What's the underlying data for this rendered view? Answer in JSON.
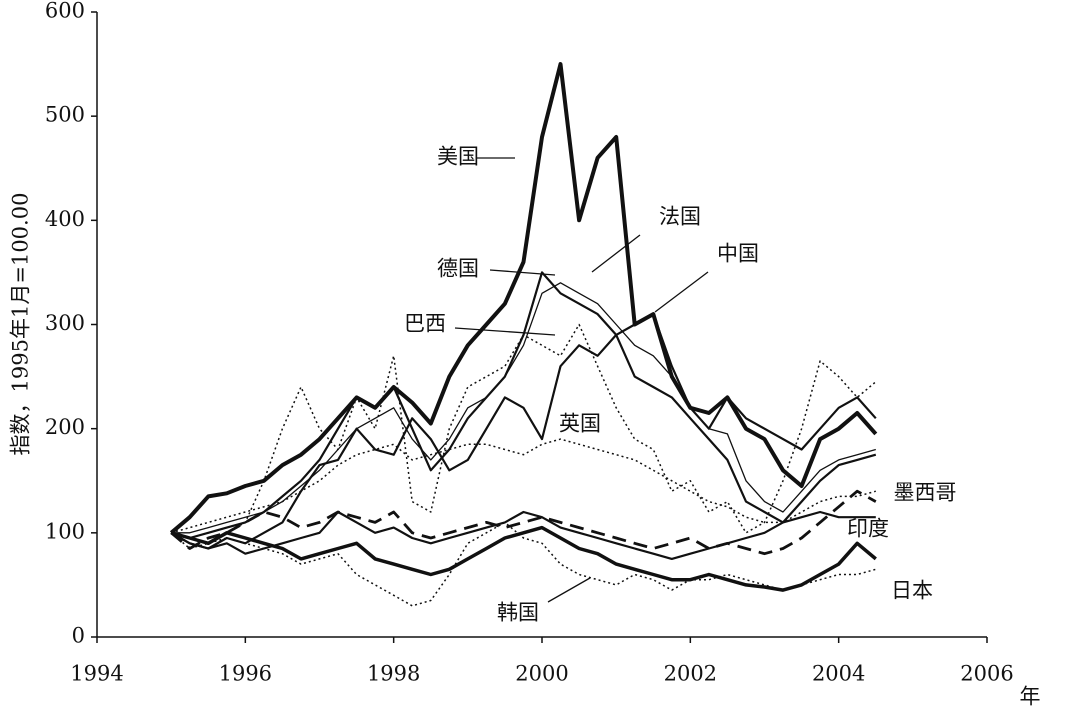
{
  "chart_data": {
    "type": "line",
    "y_label": "指数，1995年1月=100.00",
    "x_label": "年",
    "xlim": [
      1994,
      2006
    ],
    "xticks": [
      1994,
      1996,
      1998,
      2000,
      2002,
      2004,
      2006
    ],
    "ylim": [
      0,
      600
    ],
    "yticks": [
      0,
      100,
      200,
      300,
      400,
      500,
      600
    ],
    "grid": false,
    "x": [
      1995,
      1995.25,
      1995.5,
      1995.75,
      1996,
      1996.25,
      1996.5,
      1996.75,
      1997,
      1997.25,
      1997.5,
      1997.75,
      1998,
      1998.25,
      1998.5,
      1998.75,
      1999,
      1999.25,
      1999.5,
      1999.75,
      2000,
      2000.25,
      2000.5,
      2000.75,
      2001,
      2001.25,
      2001.5,
      2001.75,
      2002,
      2002.25,
      2002.5,
      2002.75,
      2003,
      2003.25,
      2003.5,
      2003.75,
      2004,
      2004.25,
      2004.5
    ],
    "series": [
      {
        "name": "美国",
        "color": "#111111",
        "style": "solid",
        "values": [
          100,
          115,
          135,
          138,
          145,
          150,
          165,
          175,
          190,
          210,
          230,
          220,
          240,
          225,
          205,
          250,
          280,
          300,
          320,
          360,
          480,
          550,
          400,
          460,
          480,
          300,
          310,
          250,
          220,
          215,
          230,
          200,
          190,
          160,
          145,
          190,
          200,
          215,
          195
        ]
      },
      {
        "name": "法国",
        "color": "#111111",
        "style": "solid",
        "values": [
          100,
          100,
          105,
          110,
          115,
          120,
          130,
          145,
          160,
          180,
          200,
          210,
          220,
          190,
          170,
          190,
          220,
          230,
          250,
          280,
          330,
          340,
          330,
          320,
          300,
          280,
          270,
          250,
          220,
          200,
          195,
          150,
          130,
          120,
          140,
          160,
          170,
          175,
          180
        ]
      },
      {
        "name": "德国",
        "color": "#111111",
        "style": "solid",
        "values": [
          100,
          95,
          100,
          105,
          110,
          120,
          135,
          150,
          170,
          200,
          230,
          220,
          240,
          200,
          160,
          180,
          210,
          230,
          250,
          290,
          350,
          330,
          320,
          310,
          290,
          250,
          240,
          230,
          210,
          190,
          170,
          130,
          120,
          110,
          130,
          150,
          165,
          170,
          175
        ]
      },
      {
        "name": "中国",
        "color": "#111111",
        "style": "solid",
        "values": [
          100,
          90,
          85,
          95,
          90,
          100,
          110,
          140,
          165,
          170,
          200,
          180,
          175,
          210,
          190,
          160,
          170,
          200,
          230,
          220,
          190,
          260,
          280,
          270,
          290,
          300,
          310,
          260,
          220,
          200,
          230,
          210,
          200,
          190,
          180,
          200,
          220,
          230,
          210
        ]
      },
      {
        "name": "巴西",
        "color": "#111111",
        "style": "dotted",
        "values": [
          100,
          85,
          90,
          100,
          110,
          150,
          200,
          240,
          200,
          180,
          230,
          200,
          270,
          130,
          120,
          200,
          240,
          250,
          260,
          290,
          280,
          270,
          300,
          260,
          220,
          190,
          180,
          140,
          150,
          120,
          130,
          100,
          110,
          150,
          200,
          265,
          250,
          230,
          245
        ]
      },
      {
        "name": "英国",
        "color": "#111111",
        "style": "dotted",
        "values": [
          100,
          105,
          110,
          115,
          120,
          125,
          130,
          140,
          150,
          165,
          175,
          180,
          185,
          170,
          175,
          180,
          185,
          185,
          180,
          175,
          185,
          190,
          185,
          180,
          175,
          170,
          160,
          150,
          140,
          130,
          125,
          115,
          110,
          110,
          120,
          130,
          135,
          135,
          140
        ]
      },
      {
        "name": "墨西哥",
        "color": "#111111",
        "style": "dashed",
        "values": [
          100,
          85,
          95,
          100,
          110,
          120,
          115,
          105,
          110,
          120,
          115,
          110,
          120,
          100,
          95,
          100,
          105,
          110,
          105,
          110,
          115,
          110,
          105,
          100,
          95,
          90,
          85,
          90,
          95,
          85,
          90,
          85,
          80,
          85,
          95,
          110,
          125,
          140,
          130
        ]
      },
      {
        "name": "印度",
        "color": "#111111",
        "style": "solid",
        "values": [
          100,
          90,
          85,
          90,
          80,
          85,
          90,
          95,
          100,
          120,
          110,
          100,
          105,
          95,
          90,
          95,
          100,
          105,
          110,
          120,
          115,
          105,
          100,
          95,
          90,
          85,
          80,
          75,
          80,
          85,
          90,
          95,
          100,
          110,
          115,
          120,
          115,
          115,
          115
        ]
      },
      {
        "name": "日本",
        "color": "#111111",
        "style": "solid",
        "values": [
          100,
          95,
          90,
          100,
          95,
          90,
          85,
          75,
          80,
          85,
          90,
          75,
          70,
          65,
          60,
          65,
          75,
          85,
          95,
          100,
          105,
          95,
          85,
          80,
          70,
          65,
          60,
          55,
          55,
          60,
          55,
          50,
          48,
          45,
          50,
          60,
          70,
          90,
          75
        ]
      },
      {
        "name": "韩国",
        "color": "#111111",
        "style": "dotted",
        "values": [
          100,
          95,
          90,
          95,
          90,
          85,
          80,
          70,
          75,
          80,
          60,
          50,
          40,
          30,
          35,
          60,
          90,
          100,
          110,
          95,
          90,
          70,
          60,
          55,
          50,
          60,
          55,
          45,
          55,
          55,
          60,
          55,
          50,
          45,
          50,
          55,
          60,
          60,
          65
        ]
      }
    ]
  }
}
